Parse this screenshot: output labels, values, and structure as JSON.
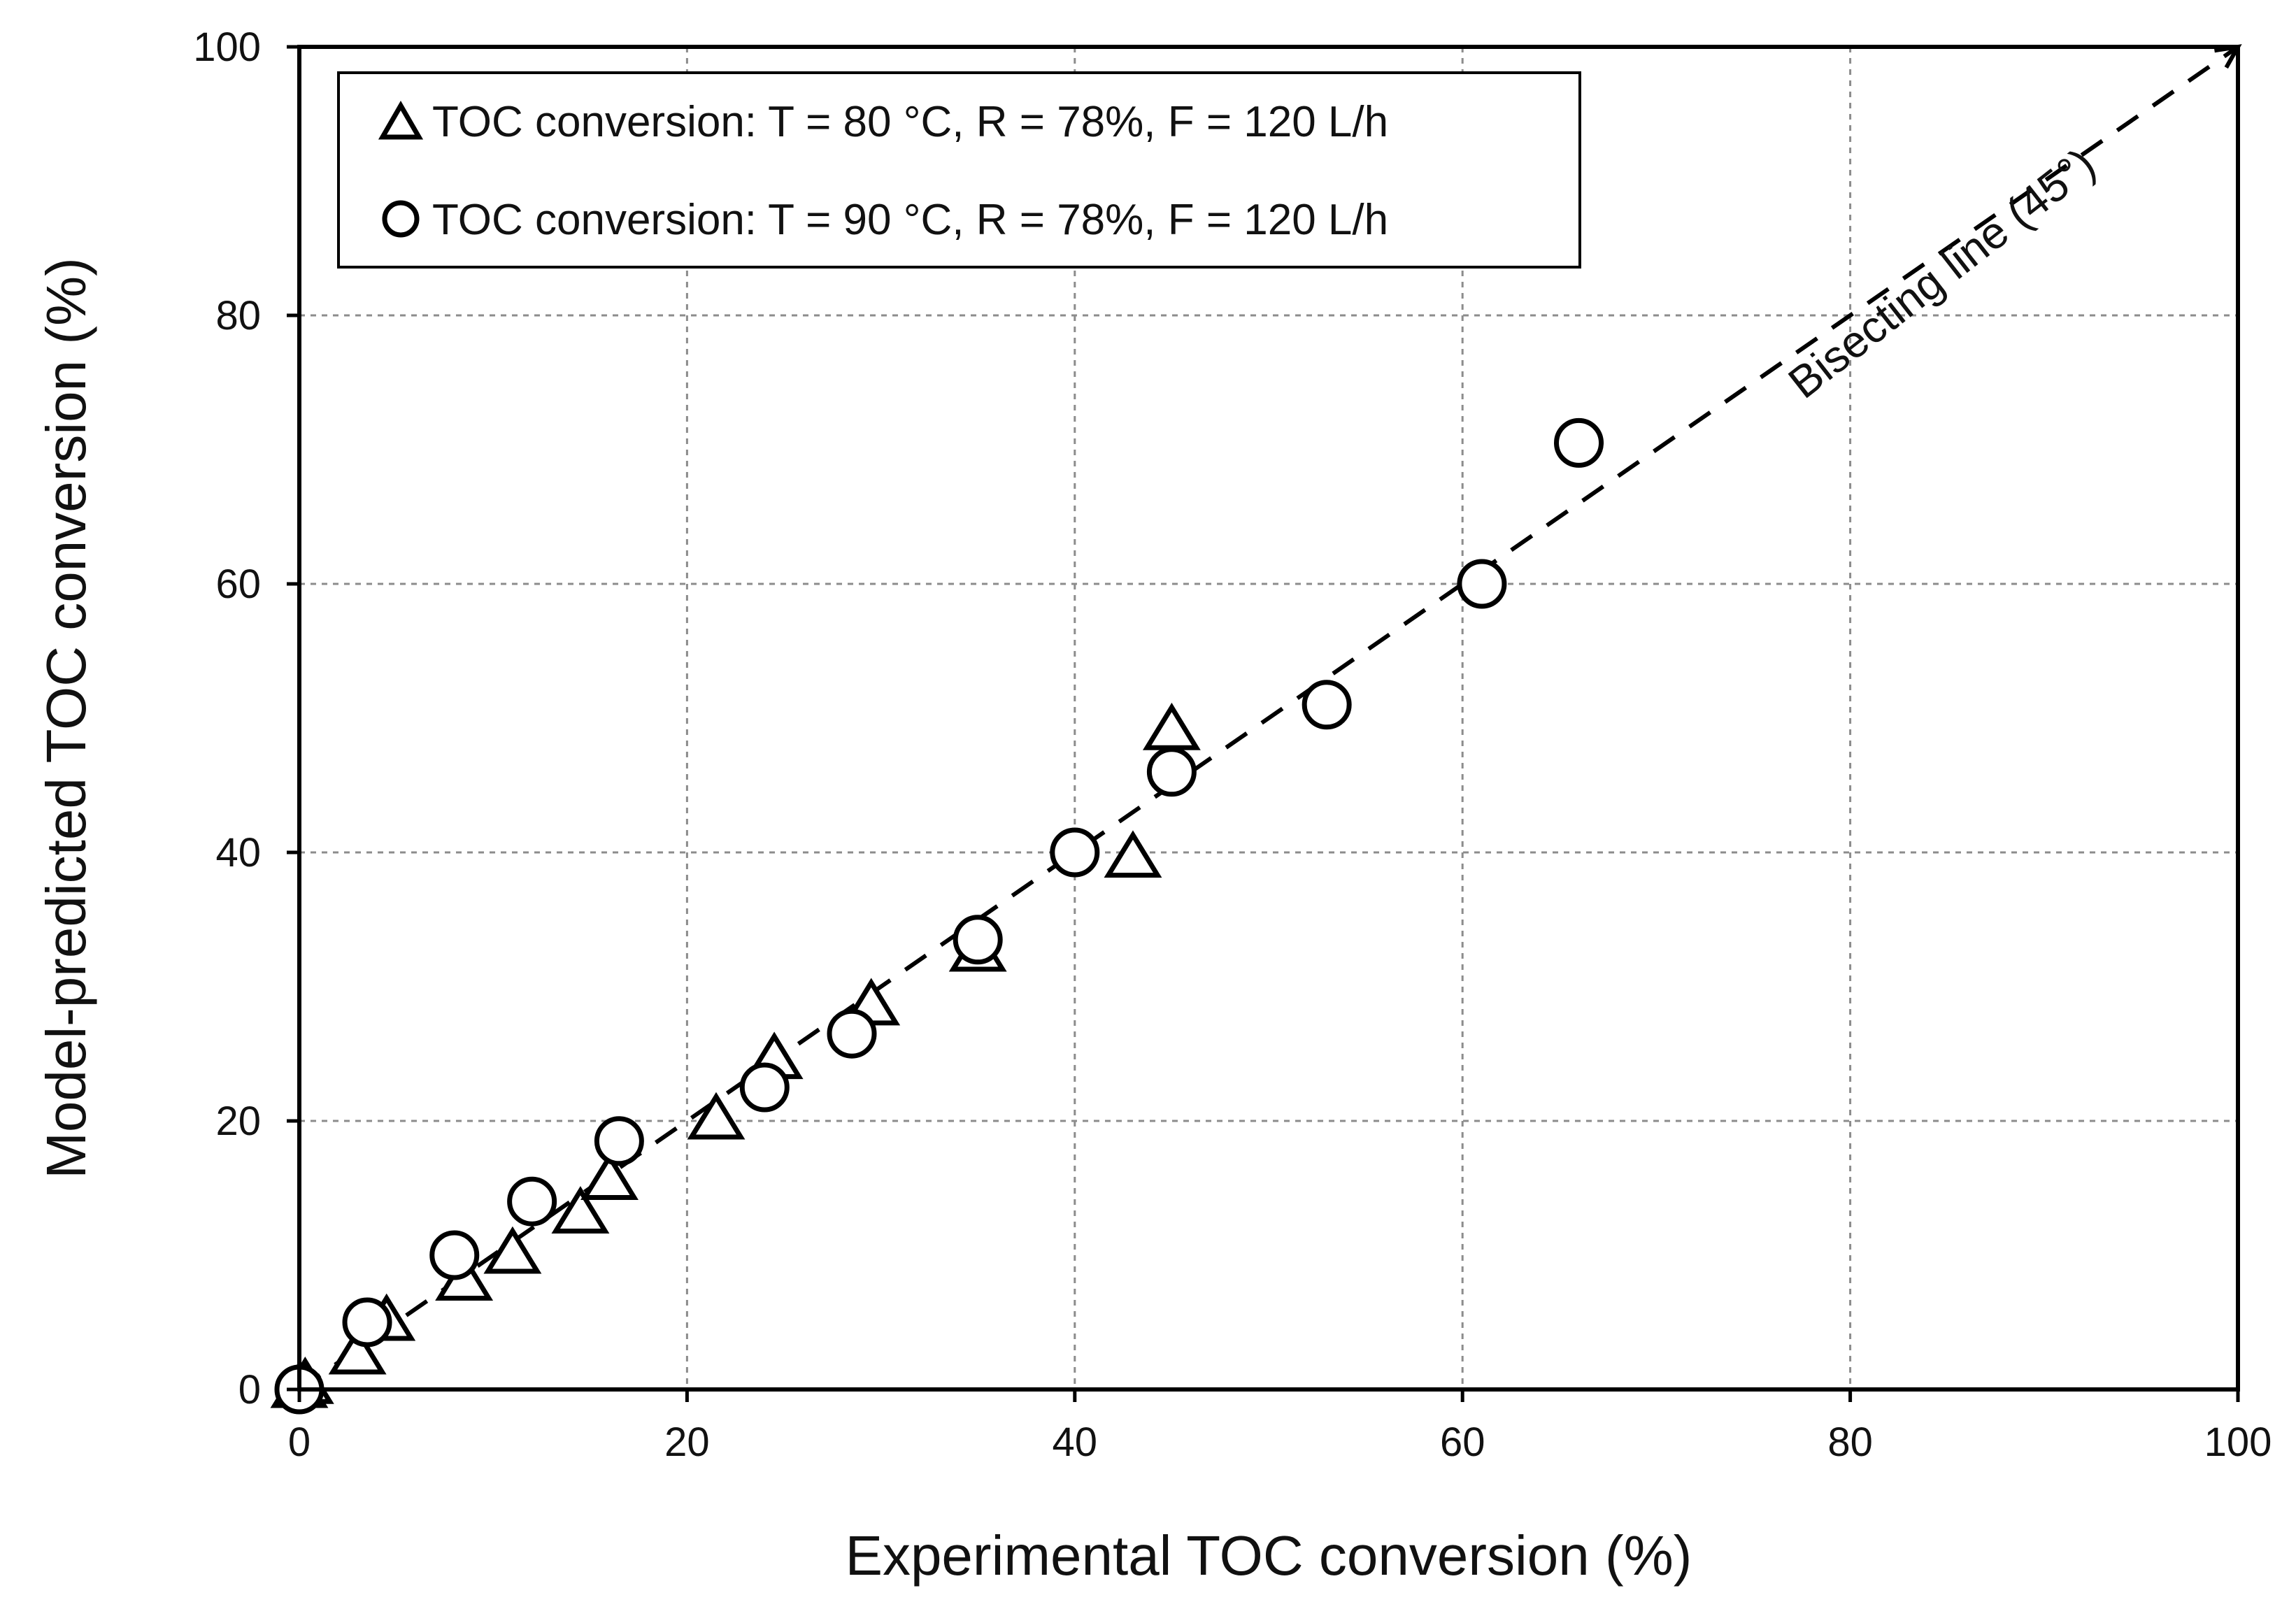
{
  "chart_data": {
    "type": "scatter",
    "title": "",
    "xlabel": "Experimental TOC conversion (%)",
    "ylabel": "Model-predicted TOC conversion (%)",
    "xlim": [
      0,
      100
    ],
    "ylim": [
      0,
      100
    ],
    "xticks": [
      0,
      20,
      40,
      60,
      80,
      100
    ],
    "yticks": [
      0,
      20,
      40,
      60,
      80,
      100
    ],
    "xtick_labels": [
      "0",
      "20",
      "40",
      "60",
      "80",
      "100"
    ],
    "ytick_labels": [
      "0",
      "20",
      "40",
      "60",
      "80",
      "100"
    ],
    "grid": true,
    "legend_position": "top-left",
    "series": [
      {
        "name": "TOC conversion: T = 80 °C, R = 78%, F = 120 L/h",
        "marker": "triangle",
        "points": [
          {
            "x": 0,
            "y": 0
          },
          {
            "x": 0.3,
            "y": 0.3
          },
          {
            "x": 3,
            "y": 2.5
          },
          {
            "x": 4.5,
            "y": 5
          },
          {
            "x": 8.5,
            "y": 8
          },
          {
            "x": 11,
            "y": 10
          },
          {
            "x": 14.5,
            "y": 13
          },
          {
            "x": 16,
            "y": 15.5
          },
          {
            "x": 21.5,
            "y": 20
          },
          {
            "x": 24.5,
            "y": 24.5
          },
          {
            "x": 29.5,
            "y": 28.5
          },
          {
            "x": 35,
            "y": 32.5
          },
          {
            "x": 43,
            "y": 39.5
          },
          {
            "x": 45,
            "y": 49
          }
        ]
      },
      {
        "name": "TOC conversion: T = 90 °C, R = 78%, F = 120 L/h",
        "marker": "circle",
        "points": [
          {
            "x": 0,
            "y": 0
          },
          {
            "x": 3.5,
            "y": 5
          },
          {
            "x": 8,
            "y": 10
          },
          {
            "x": 12,
            "y": 14
          },
          {
            "x": 16.5,
            "y": 18.5
          },
          {
            "x": 24,
            "y": 22.5
          },
          {
            "x": 28.5,
            "y": 26.5
          },
          {
            "x": 35,
            "y": 33.5
          },
          {
            "x": 40,
            "y": 40
          },
          {
            "x": 45,
            "y": 46
          },
          {
            "x": 53,
            "y": 51
          },
          {
            "x": 61,
            "y": 60
          },
          {
            "x": 66,
            "y": 70.5
          }
        ]
      }
    ],
    "reference_line": {
      "name": "Bisecting line (45°)",
      "from": [
        0,
        0
      ],
      "to": [
        100,
        100
      ],
      "style": "dashed"
    }
  }
}
